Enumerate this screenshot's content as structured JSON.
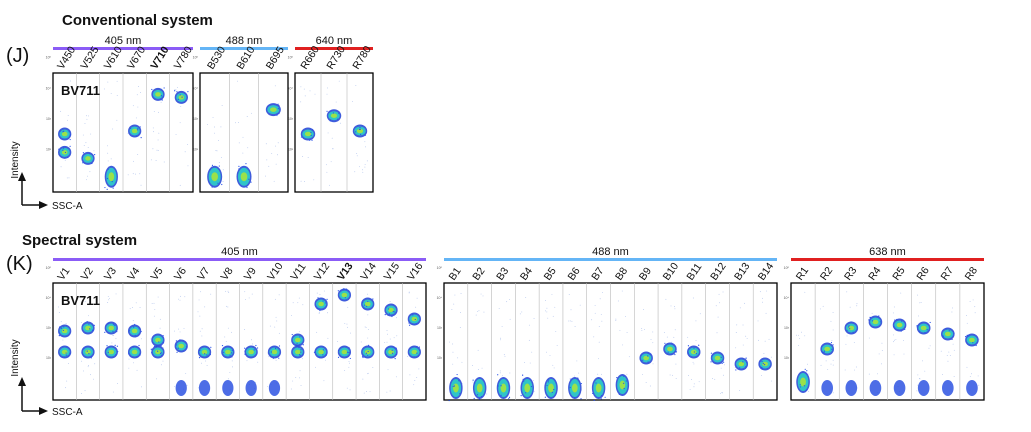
{
  "conventional": {
    "title": "Conventional system",
    "panel_letter": "(J)",
    "dye": "BV711",
    "y_axis_label": "Intensity",
    "x_axis_label": "SSC-A",
    "groups": [
      {
        "laser": "405 nm",
        "color": "#8b5cf6",
        "channels": [
          {
            "label": "V450",
            "bold": false,
            "pops": [
              2.5,
              1.9
            ]
          },
          {
            "label": "V525",
            "bold": false,
            "pops": [
              1.7
            ]
          },
          {
            "label": "V610",
            "bold": false,
            "pops": [
              1.1
            ]
          },
          {
            "label": "V670",
            "bold": false,
            "pops": [
              2.6
            ]
          },
          {
            "label": "V710",
            "bold": true,
            "pops": [
              3.8
            ]
          },
          {
            "label": "V780",
            "bold": false,
            "pops": [
              3.7
            ]
          }
        ]
      },
      {
        "laser": "488 nm",
        "color": "#64b5f6",
        "channels": [
          {
            "label": "B530",
            "bold": false,
            "pops": [
              1.1
            ]
          },
          {
            "label": "B610",
            "bold": false,
            "pops": [
              1.1
            ]
          },
          {
            "label": "B695",
            "bold": false,
            "pops": [
              3.3
            ]
          }
        ]
      },
      {
        "laser": "640 nm",
        "color": "#e02020",
        "channels": [
          {
            "label": "R660",
            "bold": false,
            "pops": [
              2.5
            ]
          },
          {
            "label": "R730",
            "bold": false,
            "pops": [
              3.1
            ]
          },
          {
            "label": "R780",
            "bold": false,
            "pops": [
              2.6
            ]
          }
        ]
      }
    ]
  },
  "spectral": {
    "title": "Spectral system",
    "panel_letter": "(K)",
    "dye": "BV711",
    "y_axis_label": "Intensity",
    "x_axis_label": "SSC-A",
    "groups": [
      {
        "laser": "405 nm",
        "color": "#8b5cf6",
        "channels": [
          {
            "label": "V1",
            "bold": false,
            "pops": [
              2.9,
              2.2
            ]
          },
          {
            "label": "V2",
            "bold": false,
            "pops": [
              3.0,
              2.2
            ]
          },
          {
            "label": "V3",
            "bold": false,
            "pops": [
              3.0,
              2.2
            ]
          },
          {
            "label": "V4",
            "bold": false,
            "pops": [
              2.9,
              2.2
            ]
          },
          {
            "label": "V5",
            "bold": false,
            "pops": [
              2.6,
              2.2
            ]
          },
          {
            "label": "V6",
            "bold": false,
            "pops": [
              2.4
            ]
          },
          {
            "label": "V7",
            "bold": false,
            "pops": [
              2.2
            ]
          },
          {
            "label": "V8",
            "bold": false,
            "pops": [
              2.2
            ]
          },
          {
            "label": "V9",
            "bold": false,
            "pops": [
              2.2
            ]
          },
          {
            "label": "V10",
            "bold": false,
            "pops": [
              2.2
            ]
          },
          {
            "label": "V11",
            "bold": false,
            "pops": [
              2.6,
              2.2
            ]
          },
          {
            "label": "V12",
            "bold": false,
            "pops": [
              3.8,
              2.2
            ]
          },
          {
            "label": "V13",
            "bold": true,
            "pops": [
              4.1,
              2.2
            ]
          },
          {
            "label": "V14",
            "bold": false,
            "pops": [
              3.8,
              2.2
            ]
          },
          {
            "label": "V15",
            "bold": false,
            "pops": [
              3.6,
              2.2
            ]
          },
          {
            "label": "V16",
            "bold": false,
            "pops": [
              3.3,
              2.2
            ]
          }
        ]
      },
      {
        "laser": "488 nm",
        "color": "#64b5f6",
        "channels": [
          {
            "label": "B1",
            "bold": false,
            "pops": [
              1.0
            ]
          },
          {
            "label": "B2",
            "bold": false,
            "pops": [
              1.0
            ]
          },
          {
            "label": "B3",
            "bold": false,
            "pops": [
              1.0
            ]
          },
          {
            "label": "B4",
            "bold": false,
            "pops": [
              1.0
            ]
          },
          {
            "label": "B5",
            "bold": false,
            "pops": [
              1.0
            ]
          },
          {
            "label": "B6",
            "bold": false,
            "pops": [
              1.0
            ]
          },
          {
            "label": "B7",
            "bold": false,
            "pops": [
              1.0
            ]
          },
          {
            "label": "B8",
            "bold": false,
            "pops": [
              1.1
            ]
          },
          {
            "label": "B9",
            "bold": false,
            "pops": [
              2.0
            ]
          },
          {
            "label": "B10",
            "bold": false,
            "pops": [
              2.3
            ]
          },
          {
            "label": "B11",
            "bold": false,
            "pops": [
              2.2
            ]
          },
          {
            "label": "B12",
            "bold": false,
            "pops": [
              2.0
            ]
          },
          {
            "label": "B13",
            "bold": false,
            "pops": [
              1.8
            ]
          },
          {
            "label": "B14",
            "bold": false,
            "pops": [
              1.8
            ]
          }
        ]
      },
      {
        "laser": "638 nm",
        "color": "#e02020",
        "channels": [
          {
            "label": "R1",
            "bold": false,
            "pops": [
              1.2
            ]
          },
          {
            "label": "R2",
            "bold": false,
            "pops": [
              2.3
            ]
          },
          {
            "label": "R3",
            "bold": false,
            "pops": [
              3.0
            ]
          },
          {
            "label": "R4",
            "bold": false,
            "pops": [
              3.2
            ]
          },
          {
            "label": "R5",
            "bold": false,
            "pops": [
              3.1
            ]
          },
          {
            "label": "R6",
            "bold": false,
            "pops": [
              3.0
            ]
          },
          {
            "label": "R7",
            "bold": false,
            "pops": [
              2.8
            ]
          },
          {
            "label": "R8",
            "bold": false,
            "pops": [
              2.6
            ]
          }
        ]
      }
    ]
  },
  "ticks": [
    "10²",
    "10³",
    "10⁴",
    "10⁵"
  ]
}
